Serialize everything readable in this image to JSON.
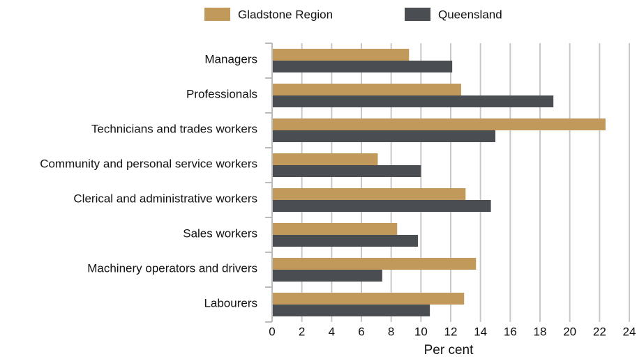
{
  "chart_data": {
    "type": "bar",
    "orientation": "horizontal",
    "categories": [
      "Managers",
      "Professionals",
      "Technicians and trades workers",
      "Community and personal service workers",
      "Clerical and administrative workers",
      "Sales workers",
      "Machinery operators and drivers",
      "Labourers"
    ],
    "series": [
      {
        "name": "Gladstone Region",
        "color": "#c19a5b",
        "values": [
          9.2,
          12.7,
          22.4,
          7.1,
          13.0,
          8.4,
          13.7,
          12.9
        ]
      },
      {
        "name": "Queensland",
        "color": "#4a4d52",
        "values": [
          12.1,
          18.9,
          15.0,
          10.0,
          14.7,
          9.8,
          7.4,
          10.6
        ]
      }
    ],
    "xlabel": "Per cent",
    "xlim": [
      0,
      24
    ],
    "xticks": [
      0,
      2,
      4,
      6,
      8,
      10,
      12,
      14,
      16,
      18,
      20,
      22,
      24
    ],
    "grid": true,
    "legend": "top"
  }
}
